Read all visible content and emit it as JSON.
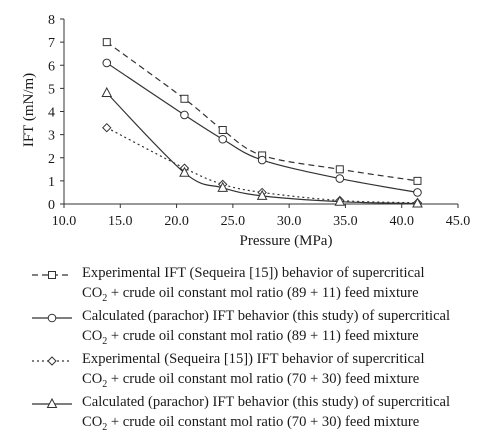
{
  "chart_data": {
    "type": "line",
    "xlabel": "Pressure (MPa)",
    "ylabel": "IFT (mN/m)",
    "xlim": [
      10.0,
      45.0
    ],
    "ylim": [
      0,
      8
    ],
    "xticks": [
      "10.0",
      "15.0",
      "20.0",
      "25.0",
      "30.0",
      "35.0",
      "40.0",
      "45.0"
    ],
    "yticks": [
      "0",
      "1",
      "2",
      "3",
      "4",
      "5",
      "6",
      "7",
      "8"
    ],
    "grid": false,
    "legend_position": "bottom",
    "series": [
      {
        "name": "Experimental IFT (Sequeira [15]) behavior of supercritical CO2 + crude oil constant mol ratio (89 + 11) feed mixture",
        "line1": "Experimental IFT (Sequeira [15]) behavior of supercritical",
        "line2_pre": "CO",
        "line2_sub": "2",
        "line2_post": " + crude oil constant mol ratio (89 + 11) feed mixture",
        "line_style": "dashed",
        "marker": "square",
        "x": [
          13.8,
          20.7,
          24.1,
          27.6,
          34.5,
          41.4
        ],
        "y": [
          7.0,
          4.55,
          3.2,
          2.1,
          1.5,
          1.0
        ]
      },
      {
        "name": "Calculated (parachor) IFT behavior (this study) of supercritical CO2 + crude oil constant mol ratio (89 + 11) feed mixture",
        "line1": "Calculated (parachor) IFT behavior (this study) of supercritical",
        "line2_pre": "CO",
        "line2_sub": "2",
        "line2_post": " + crude oil constant mol ratio (89 + 11) feed mixture",
        "line_style": "solid",
        "marker": "circle",
        "x": [
          13.8,
          20.7,
          24.1,
          27.6,
          34.5,
          41.4
        ],
        "y": [
          6.1,
          3.85,
          2.8,
          1.9,
          1.1,
          0.5
        ]
      },
      {
        "name": "Experimental (Sequeira [15]) IFT behavior of supercritical CO2 + crude oil constant mol ratio (70 + 30) feed mixture",
        "line1": "Experimental (Sequeira [15]) IFT behavior of supercritical",
        "line2_pre": "CO",
        "line2_sub": "2",
        "line2_post": " + crude oil constant mol ratio (70 + 30) feed mixture",
        "line_style": "dotted",
        "marker": "diamond",
        "x": [
          13.8,
          20.7,
          24.1,
          27.6,
          34.5,
          41.4
        ],
        "y": [
          3.3,
          1.55,
          0.85,
          0.5,
          0.15,
          0.05
        ]
      },
      {
        "name": "Calculated (parachor) IFT behavior (this study) of supercritical CO2 + crude oil constant mol ratio (70 + 30) feed mixture",
        "line1": "Calculated (parachor) IFT behavior (this study) of supercritical",
        "line2_pre": "CO",
        "line2_sub": "2",
        "line2_post": " + crude oil constant mol ratio (70 + 30) feed mixture",
        "line_style": "solid",
        "marker": "triangle",
        "x": [
          13.8,
          20.7,
          24.1,
          27.6,
          34.5,
          41.4
        ],
        "y": [
          4.8,
          1.35,
          0.7,
          0.35,
          0.1,
          0.02
        ]
      }
    ]
  }
}
